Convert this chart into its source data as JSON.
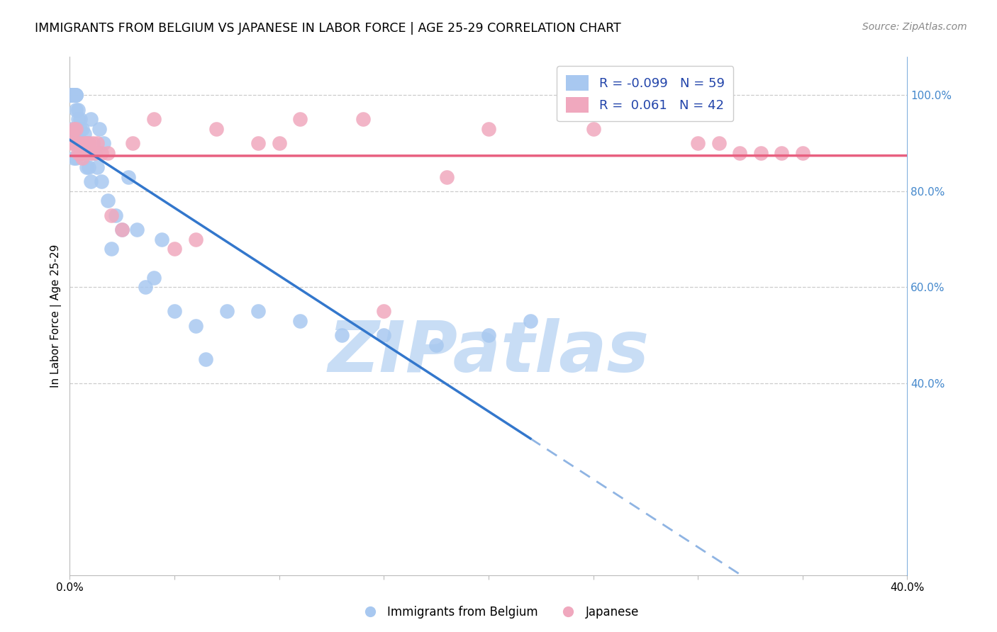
{
  "title": "IMMIGRANTS FROM BELGIUM VS JAPANESE IN LABOR FORCE | AGE 25-29 CORRELATION CHART",
  "source": "Source: ZipAtlas.com",
  "ylabel": "In Labor Force | Age 25-29",
  "xlim": [
    0.0,
    0.4
  ],
  "ylim": [
    0.0,
    1.08
  ],
  "legend_R_belgium": "-0.099",
  "legend_N_belgium": "59",
  "legend_R_japanese": " 0.061",
  "legend_N_japanese": "42",
  "belgium_color": "#a8c8f0",
  "japanese_color": "#f0a8be",
  "trendline_belgium_color": "#3377cc",
  "trendline_japanese_color": "#e86080",
  "watermark_color": "#c8ddf5",
  "belgium_x": [
    0.001,
    0.001,
    0.001,
    0.001,
    0.001,
    0.002,
    0.002,
    0.002,
    0.002,
    0.003,
    0.003,
    0.003,
    0.003,
    0.004,
    0.004,
    0.004,
    0.005,
    0.005,
    0.005,
    0.006,
    0.006,
    0.007,
    0.007,
    0.008,
    0.008,
    0.009,
    0.009,
    0.01,
    0.01,
    0.011,
    0.012,
    0.013,
    0.014,
    0.015,
    0.016,
    0.018,
    0.02,
    0.022,
    0.025,
    0.028,
    0.032,
    0.036,
    0.04,
    0.044,
    0.05,
    0.06,
    0.065,
    0.075,
    0.09,
    0.11,
    0.13,
    0.15,
    0.175,
    0.2,
    0.22,
    0.001,
    0.002,
    0.003,
    0.004
  ],
  "belgium_y": [
    1.0,
    1.0,
    1.0,
    1.0,
    1.0,
    1.0,
    1.0,
    1.0,
    1.0,
    1.0,
    1.0,
    0.97,
    1.0,
    0.97,
    0.95,
    0.92,
    0.95,
    0.93,
    0.9,
    0.93,
    0.9,
    0.92,
    0.88,
    0.9,
    0.85,
    0.9,
    0.85,
    0.95,
    0.82,
    0.88,
    0.88,
    0.85,
    0.93,
    0.82,
    0.9,
    0.78,
    0.68,
    0.75,
    0.72,
    0.83,
    0.72,
    0.6,
    0.62,
    0.7,
    0.55,
    0.52,
    0.45,
    0.55,
    0.55,
    0.53,
    0.5,
    0.5,
    0.48,
    0.5,
    0.53,
    0.93,
    0.87,
    0.87,
    0.9
  ],
  "japanese_x": [
    0.001,
    0.001,
    0.002,
    0.002,
    0.003,
    0.003,
    0.004,
    0.004,
    0.005,
    0.005,
    0.006,
    0.006,
    0.007,
    0.008,
    0.009,
    0.01,
    0.011,
    0.012,
    0.013,
    0.015,
    0.018,
    0.02,
    0.025,
    0.03,
    0.04,
    0.05,
    0.06,
    0.07,
    0.09,
    0.1,
    0.11,
    0.14,
    0.15,
    0.18,
    0.2,
    0.25,
    0.3,
    0.31,
    0.32,
    0.33,
    0.34,
    0.35
  ],
  "japanese_y": [
    0.9,
    0.92,
    0.93,
    0.9,
    0.93,
    0.9,
    0.9,
    0.88,
    0.9,
    0.88,
    0.88,
    0.87,
    0.9,
    0.9,
    0.9,
    0.88,
    0.9,
    0.88,
    0.9,
    0.88,
    0.88,
    0.75,
    0.72,
    0.9,
    0.95,
    0.68,
    0.7,
    0.93,
    0.9,
    0.9,
    0.95,
    0.95,
    0.55,
    0.83,
    0.93,
    0.93,
    0.9,
    0.9,
    0.88,
    0.88,
    0.88,
    0.88
  ]
}
